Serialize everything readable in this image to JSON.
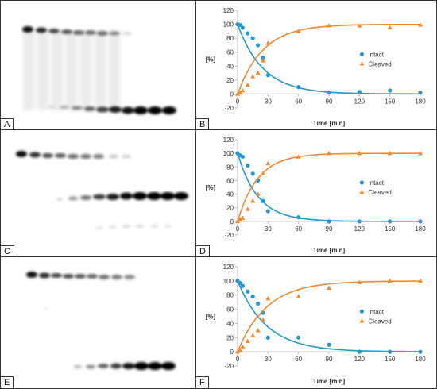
{
  "colors": {
    "intact": "#1f9ad6",
    "cleaved": "#f28a30",
    "band": "#111111",
    "axis": "#bbbbbb"
  },
  "gels": [
    {
      "label": "A"
    },
    {
      "label": "C"
    },
    {
      "label": "E"
    }
  ],
  "chart_data": [
    {
      "panel_label": "B",
      "type": "scatter",
      "xlabel": "Time [min]",
      "ylabel": "[%]",
      "xlim": [
        0,
        180
      ],
      "ylim": [
        -20,
        120
      ],
      "xticks": [
        0,
        30,
        60,
        90,
        120,
        150,
        180
      ],
      "yticks": [
        -20,
        0,
        20,
        40,
        60,
        80,
        100,
        120
      ],
      "legend_position": "right",
      "series": [
        {
          "name": "Intact",
          "marker": "circle",
          "x": [
            0,
            2.5,
            5,
            10,
            15,
            20,
            25,
            30,
            60,
            90,
            120,
            150,
            180
          ],
          "y": [
            100,
            99,
            95,
            87,
            80,
            70,
            52,
            27,
            10,
            2,
            3,
            5,
            2
          ]
        },
        {
          "name": "Cleaved",
          "marker": "triangle",
          "x": [
            0,
            2.5,
            5,
            10,
            15,
            20,
            25,
            30,
            60,
            90,
            120,
            150,
            180
          ],
          "y": [
            0,
            2,
            5,
            13,
            25,
            30,
            48,
            73,
            90,
            98,
            98,
            95,
            99
          ]
        }
      ]
    },
    {
      "panel_label": "D",
      "type": "scatter",
      "xlabel": "Time [min]",
      "ylabel": "[%]",
      "xlim": [
        0,
        180
      ],
      "ylim": [
        -20,
        120
      ],
      "xticks": [
        0,
        30,
        60,
        90,
        120,
        150,
        180
      ],
      "yticks": [
        -20,
        0,
        20,
        40,
        60,
        80,
        100,
        120
      ],
      "legend_position": "right",
      "series": [
        {
          "name": "Intact",
          "marker": "circle",
          "x": [
            0,
            2.5,
            5,
            10,
            15,
            20,
            25,
            30,
            60,
            90,
            120,
            150,
            180
          ],
          "y": [
            100,
            97,
            95,
            82,
            70,
            60,
            30,
            15,
            6,
            0,
            0,
            0,
            0
          ]
        },
        {
          "name": "Cleaved",
          "marker": "triangle",
          "x": [
            0,
            2.5,
            5,
            10,
            15,
            20,
            25,
            30,
            60,
            90,
            120,
            150,
            180
          ],
          "y": [
            0,
            3,
            5,
            18,
            30,
            40,
            70,
            85,
            95,
            100,
            100,
            100,
            100
          ]
        }
      ]
    },
    {
      "panel_label": "F",
      "type": "scatter",
      "xlabel": "Time [min]",
      "ylabel": "[%]",
      "xlim": [
        0,
        180
      ],
      "ylim": [
        -20,
        120
      ],
      "xticks": [
        0,
        30,
        60,
        90,
        120,
        150,
        180
      ],
      "yticks": [
        -20,
        0,
        20,
        40,
        60,
        80,
        100,
        120
      ],
      "legend_position": "right",
      "series": [
        {
          "name": "Intact",
          "marker": "circle",
          "x": [
            0,
            2.5,
            5,
            10,
            15,
            20,
            25,
            30,
            60,
            90,
            120,
            150,
            180
          ],
          "y": [
            100,
            97,
            93,
            85,
            78,
            68,
            55,
            20,
            20,
            10,
            0,
            0,
            0
          ]
        },
        {
          "name": "Cleaved",
          "marker": "triangle",
          "x": [
            0,
            2.5,
            5,
            10,
            15,
            20,
            25,
            30,
            60,
            90,
            120,
            150,
            180
          ],
          "y": [
            0,
            2,
            7,
            15,
            23,
            30,
            45,
            75,
            78,
            90,
            98,
            100,
            100
          ]
        }
      ]
    }
  ]
}
